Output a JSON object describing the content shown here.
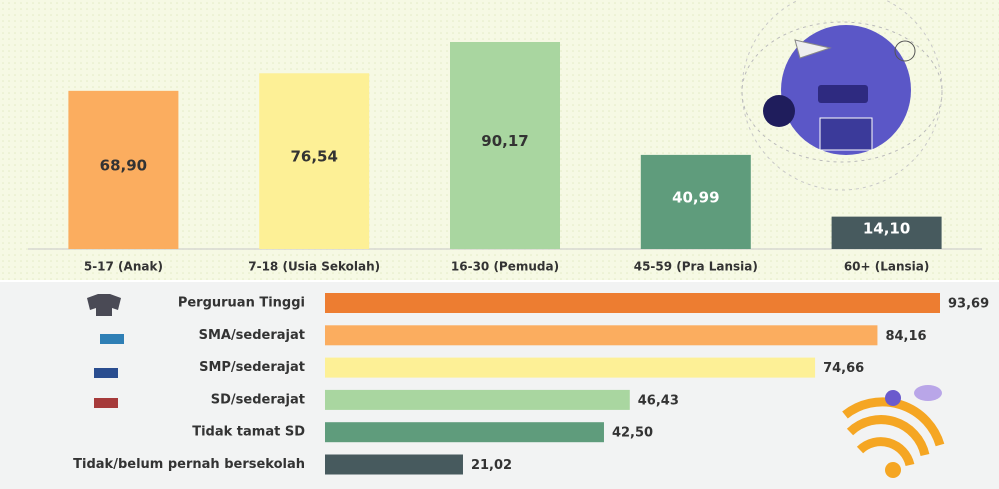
{
  "chart_data": [
    {
      "type": "bar",
      "categories": [
        "5-17 (Anak)",
        "7-18 (Usia Sekolah)",
        "16-30 (Pemuda)",
        "45-59 (Pra Lansia)",
        "60+ (Lansia)"
      ],
      "values": [
        68.9,
        76.54,
        90.17,
        40.99,
        14.1
      ],
      "value_labels": [
        "68,90",
        "76,54",
        "90,17",
        "40,99",
        "14,10"
      ],
      "colors": [
        "#fbad5f",
        "#fdf096",
        "#a9d6a0",
        "#5f9c7c",
        "#475a5e"
      ]
    },
    {
      "type": "hbar",
      "categories": [
        "Perguruan Tinggi",
        "SMA/sederajat",
        "SMP/sederajat",
        "SD/sederajat",
        "Tidak tamat SD",
        "Tidak/belum pernah bersekolah"
      ],
      "values": [
        93.69,
        84.16,
        74.66,
        46.43,
        42.5,
        21.02
      ],
      "value_labels": [
        "93,69",
        "84,16",
        "74,66",
        "46,43",
        "42,50",
        "21,02"
      ],
      "colors": [
        "#ed7d31",
        "#fbad5f",
        "#fdf096",
        "#a9d6a0",
        "#5f9c7c",
        "#475a5e"
      ]
    }
  ]
}
